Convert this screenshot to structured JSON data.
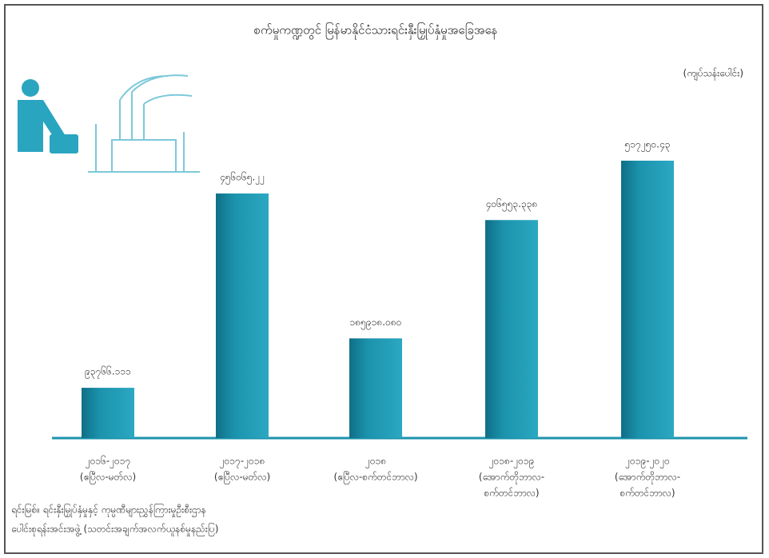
{
  "chart_data": {
    "type": "bar",
    "title": "စက်မှုကဏ္ဍတွင် မြန်မာနိုင်ငံသားရင်းနှီးမြှုပ်နှံမှုအခြေအနေ",
    "unit_label": "(ကျပ်သန်းပေါင်း)",
    "categories": [
      [
        "၂၀၁၆-၂၀၁၇",
        "(ဧပြီလ-မတ်လ)"
      ],
      [
        "၂၀၁၇-၂၀၁၈",
        "(ဧပြီလ-မတ်လ)"
      ],
      [
        "၂၀၁၈",
        "(ဧပြီလ-စက်တင်ဘာလ)"
      ],
      [
        "၂၀၁၈-၂၀၁၉",
        "(အောက်တိုဘာလ-",
        "စက်တင်ဘာလ)"
      ],
      [
        "၂၀၁၉-၂၀၂၀",
        "(အောက်တိုဘာလ-",
        "စက်တင်ဘာလ)"
      ]
    ],
    "values": [
      93766.111,
      456065.22,
      185918.08,
      406553.338,
      517250.43
    ],
    "value_labels": [
      "၉၃၇၆၆.၁၁၁",
      "၄၅၆၀၆၅.၂၂",
      "၁၈၅၉၁၈.၀၈၀",
      "၄၀၆၅၅၃.၃၃၈",
      "၅၁၇၂၅၀.၄၃"
    ],
    "color": "#1c93ad",
    "source": [
      "ရင်းမြစ်။ ရင်းနှီးမြှုပ်နှံမှုနှင့် ကုမ္ပဏီများညွှန်ကြားမှုဦးစီးဌာန",
      "ပေါင်းစုရန်းအင်းအဖွဲ့ (သတင်းအချက်အလက်ယူနစ်မှုနည်းပြ)"
    ]
  }
}
